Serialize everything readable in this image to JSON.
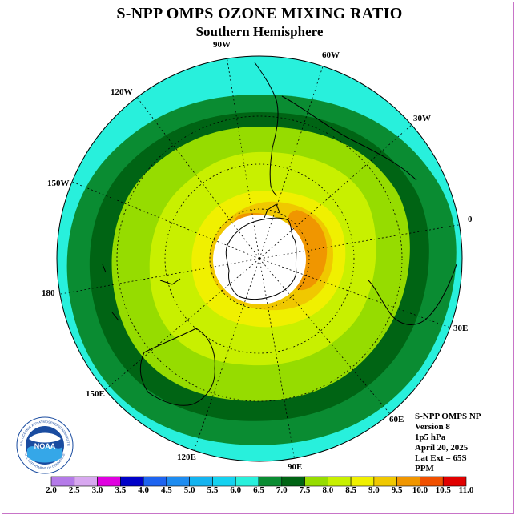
{
  "title": "S-NPP OMPS OZONE MIXING RATIO",
  "subtitle": "Southern Hemisphere",
  "longitude_labels": [
    "90W",
    "60W",
    "120W",
    "30W",
    "150W",
    "0",
    "180",
    "30E",
    "150E",
    "60E",
    "120E",
    "90E"
  ],
  "info": {
    "instrument": "S-NPP OMPS NP",
    "version": "Version 8",
    "level": "1p5 hPa",
    "date": "April 20, 2025",
    "lat_ext": "Lat Ext = 65S",
    "units": "PPM"
  },
  "logo": {
    "text": "NOAA",
    "ring_text": "NATIONAL OCEANIC AND ATMOSPHERIC ADMINISTRATION",
    "ring_text_bottom": "U.S. DEPARTMENT OF COMMERCE"
  },
  "colorbar": {
    "ticks": [
      "2.0",
      "2.5",
      "3.0",
      "3.5",
      "4.0",
      "4.5",
      "5.0",
      "5.5",
      "6.0",
      "6.5",
      "7.0",
      "7.5",
      "8.0",
      "8.5",
      "9.0",
      "9.5",
      "10.0",
      "10.5",
      "11.0"
    ],
    "colors": [
      "#b47ae8",
      "#d8a8f0",
      "#e000e0",
      "#0000c8",
      "#1e64f0",
      "#1e8cf0",
      "#14b4f0",
      "#14d2f0",
      "#28f0dc",
      "#0a8c32",
      "#006414",
      "#96dc00",
      "#c8f000",
      "#f0f000",
      "#f0c800",
      "#f09600",
      "#f05000",
      "#e00000",
      "#8c5a3c"
    ]
  },
  "palette": {
    "band_6_0": "#28f0dc",
    "band_6_5": "#0a8c32",
    "band_7_0": "#006414",
    "band_7_5": "#96dc00",
    "band_8_0": "#c8f000",
    "band_8_5": "#f0f000",
    "band_9_0": "#f0c800",
    "band_9_5": "#f09600",
    "missing": "#ffffff"
  }
}
